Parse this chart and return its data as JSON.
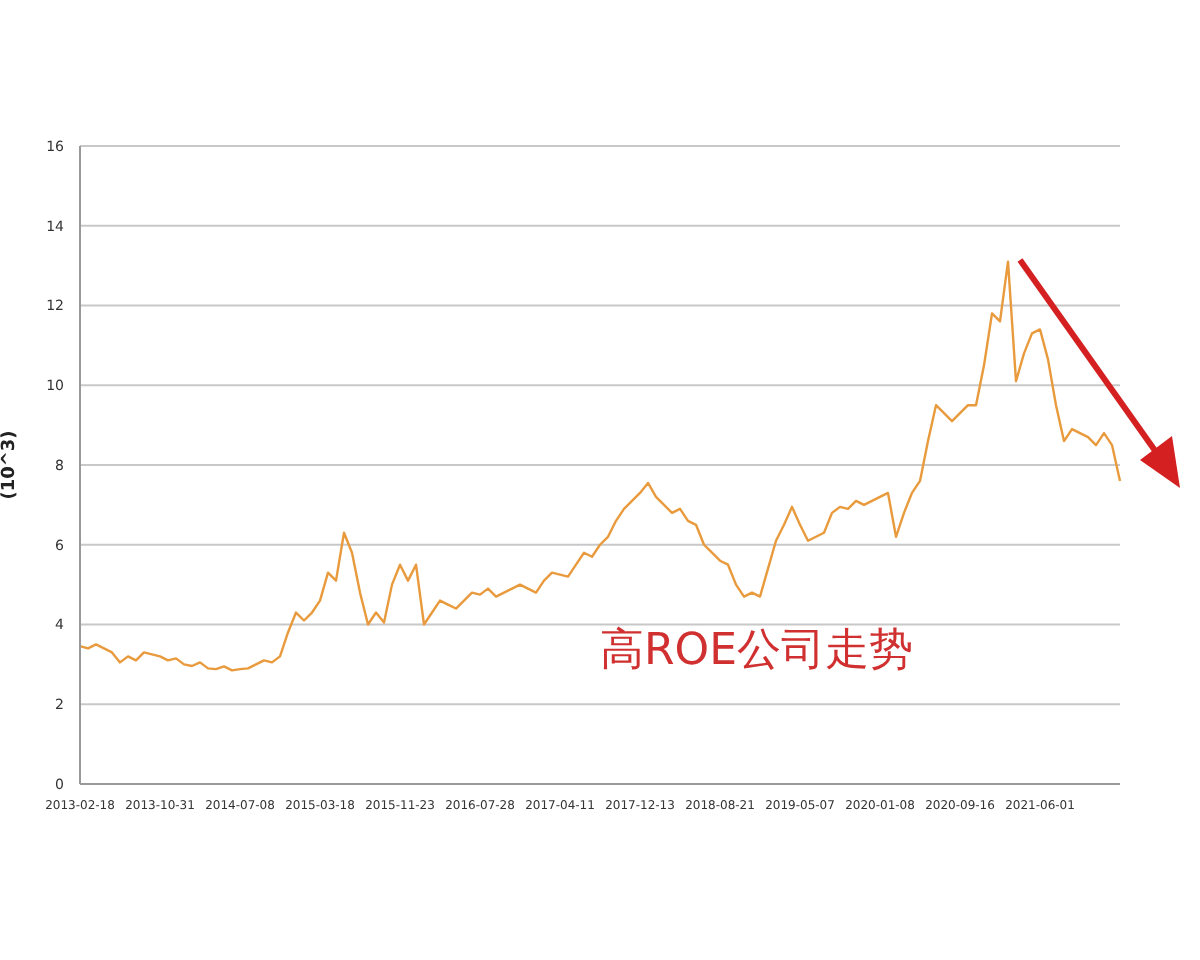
{
  "chart_data": {
    "type": "line",
    "ylabel": "(10^3)",
    "annotations": [
      "高ROE公司走势"
    ],
    "categories": [
      "2013-02-18",
      null,
      null,
      null,
      null,
      null,
      null,
      null,
      null,
      null,
      "2013-10-31",
      null,
      null,
      null,
      null,
      null,
      null,
      null,
      null,
      null,
      "2014-07-08",
      null,
      null,
      null,
      null,
      null,
      null,
      null,
      null,
      null,
      "2015-03-18",
      null,
      null,
      null,
      null,
      null,
      null,
      null,
      null,
      null,
      "2015-11-23",
      null,
      null,
      null,
      null,
      null,
      null,
      null,
      null,
      null,
      "2016-07-28",
      null,
      null,
      null,
      null,
      null,
      null,
      null,
      null,
      null,
      "2017-04-11",
      null,
      null,
      null,
      null,
      null,
      null,
      null,
      null,
      null,
      "2017-12-13",
      null,
      null,
      null,
      null,
      null,
      null,
      null,
      null,
      null,
      "2018-08-21",
      null,
      null,
      null,
      null,
      null,
      null,
      null,
      null,
      null,
      "2019-05-07",
      null,
      null,
      null,
      null,
      null,
      null,
      null,
      null,
      null,
      "2020-01-08",
      null,
      null,
      null,
      null,
      null,
      null,
      null,
      null,
      null,
      "2020-09-16",
      null,
      null,
      null,
      null,
      null,
      null,
      null,
      null,
      null,
      "2021-06-01",
      null,
      null,
      null,
      null,
      null,
      null,
      null,
      null,
      null,
      null
    ],
    "series": [
      {
        "color": "#e89a3c",
        "values": [
          3.46,
          3.4,
          3.5,
          3.4,
          3.3,
          3.05,
          3.2,
          3.1,
          3.3,
          3.25,
          3.2,
          3.1,
          3.15,
          3.0,
          2.96,
          3.05,
          2.9,
          2.88,
          2.95,
          2.85,
          2.88,
          2.9,
          3.0,
          3.1,
          3.05,
          3.2,
          3.8,
          4.3,
          4.1,
          4.3,
          4.6,
          5.3,
          5.1,
          6.3,
          5.8,
          4.8,
          4.0,
          4.3,
          4.05,
          5.0,
          5.5,
          5.1,
          5.5,
          4.0,
          4.3,
          4.6,
          4.5,
          4.4,
          4.6,
          4.8,
          4.75,
          4.9,
          4.7,
          4.8,
          4.9,
          5.0,
          4.9,
          4.8,
          5.1,
          5.3,
          5.25,
          5.2,
          5.5,
          5.8,
          5.7,
          6.0,
          6.2,
          6.6,
          6.9,
          7.1,
          7.3,
          7.55,
          7.2,
          7.0,
          6.8,
          6.9,
          6.6,
          6.5,
          6.0,
          5.8,
          5.6,
          5.5,
          5.0,
          4.7,
          4.8,
          4.7,
          5.4,
          6.1,
          6.5,
          6.95,
          6.5,
          6.1,
          6.2,
          6.3,
          6.8,
          6.95,
          6.9,
          7.1,
          7.0,
          7.1,
          7.2,
          7.3,
          6.2,
          6.8,
          7.3,
          7.6,
          8.6,
          9.5,
          9.3,
          9.1,
          9.3,
          9.5,
          9.5,
          10.5,
          11.8,
          11.6,
          13.1,
          10.1,
          10.8,
          11.3,
          11.4,
          10.65,
          9.5,
          8.6,
          8.9,
          8.8,
          8.7,
          8.5,
          8.8,
          8.5,
          7.6
        ]
      }
    ],
    "ylim": [
      0,
      16
    ],
    "yticks": [
      0,
      2,
      4,
      6,
      8,
      10,
      12,
      14,
      16
    ],
    "grid": "y",
    "marker": "none",
    "line_style": "solid"
  }
}
